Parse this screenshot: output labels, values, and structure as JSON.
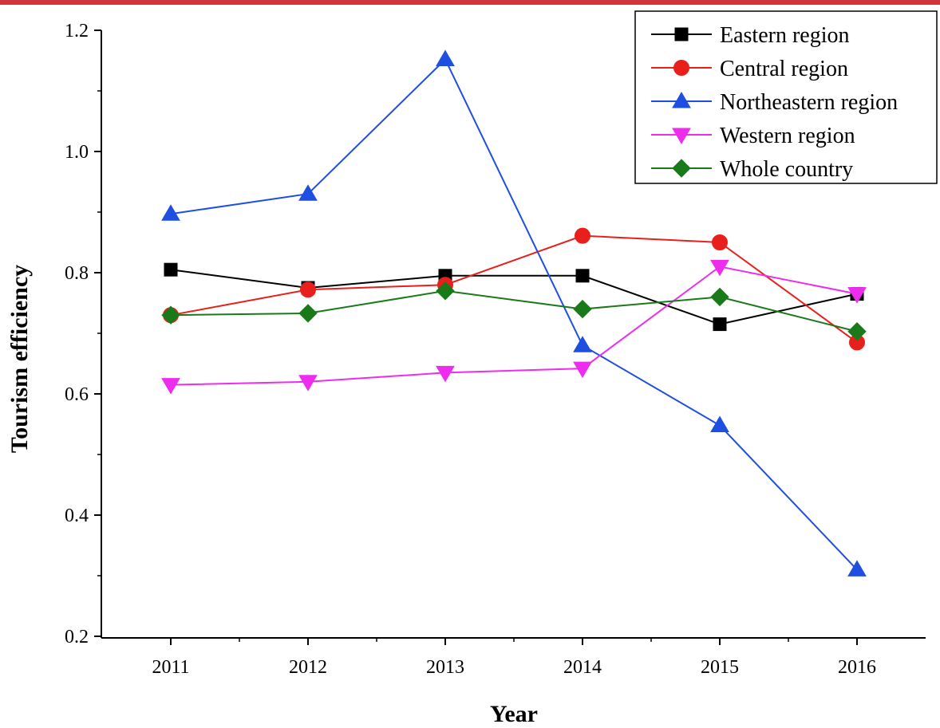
{
  "chart_data": {
    "type": "line",
    "title": "",
    "xlabel": "Year",
    "ylabel": "Tourism efficiency",
    "x": [
      "2011",
      "2012",
      "2013",
      "2014",
      "2015",
      "2016"
    ],
    "ylim": [
      0.2,
      1.2
    ],
    "yticks": [
      "0.2",
      "0.4",
      "0.6",
      "0.8",
      "1.0",
      "1.2"
    ],
    "grid": false,
    "legend_position": "top-right",
    "series": [
      {
        "name": "Eastern region",
        "color": "#000000",
        "marker": "square",
        "values": [
          0.805,
          0.775,
          0.795,
          0.795,
          0.715,
          0.765
        ]
      },
      {
        "name": "Central region",
        "color": "#e8201c",
        "marker": "circle",
        "values": [
          0.73,
          0.772,
          0.78,
          0.861,
          0.85,
          0.685
        ]
      },
      {
        "name": "Northeastern region",
        "color": "#1f4fe0",
        "marker": "triangle-up",
        "values": [
          0.897,
          0.93,
          1.152,
          0.68,
          0.548,
          0.31
        ]
      },
      {
        "name": "Western region",
        "color": "#ee2cee",
        "marker": "triangle-down",
        "values": [
          0.615,
          0.62,
          0.635,
          0.642,
          0.81,
          0.765
        ]
      },
      {
        "name": "Whole country",
        "color": "#1a7a1a",
        "marker": "diamond",
        "values": [
          0.73,
          0.733,
          0.77,
          0.74,
          0.76,
          0.703
        ]
      }
    ]
  }
}
